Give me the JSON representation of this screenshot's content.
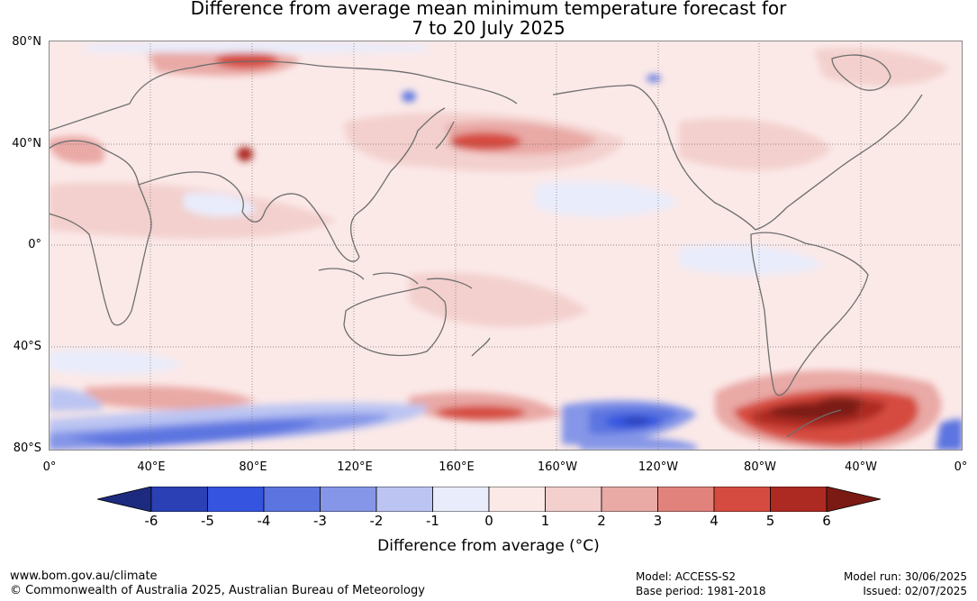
{
  "title_line1": "Difference from average mean minimum temperature forecast for",
  "title_line2": "7 to 20 July 2025",
  "lat_labels": [
    "80°N",
    "40°N",
    "0°",
    "40°S",
    "80°S"
  ],
  "lon_labels": [
    "0°",
    "40°E",
    "80°E",
    "120°E",
    "160°E",
    "160°W",
    "120°W",
    "80°W",
    "40°W",
    "0°"
  ],
  "colorbar": {
    "ticks": [
      "-6",
      "-5",
      "-4",
      "-3",
      "-2",
      "-1",
      "0",
      "1",
      "2",
      "3",
      "4",
      "5",
      "6"
    ],
    "colors": [
      "#1c2a80",
      "#2a40b4",
      "#3555e0",
      "#5b74e0",
      "#8596e8",
      "#bcc5f2",
      "#e9ecfb",
      "#fbe9e8",
      "#f3d0cd",
      "#e9a9a5",
      "#e2827c",
      "#d64b40",
      "#ad2a22",
      "#7b1a14"
    ],
    "title": "Difference from average (°C)"
  },
  "footer": {
    "website": "www.bom.gov.au/climate",
    "copyright": "© Commonwealth of Australia 2025, Australian Bureau of Meteorology",
    "model": "Model: ACCESS-S2",
    "base_period": "Base period: 1981-2018",
    "model_run": "Model run: 30/06/2025",
    "issued": "Issued: 02/07/2025"
  }
}
